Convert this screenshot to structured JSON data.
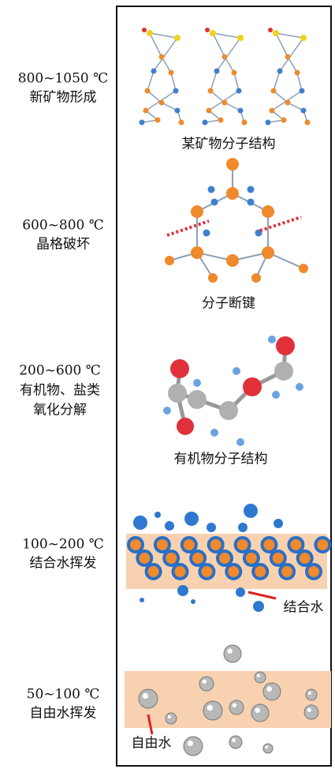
{
  "stages": [
    {
      "temperature": "800~1050 ℃",
      "description": [
        "新矿物形成"
      ],
      "caption": "某矿物分子结构"
    },
    {
      "temperature": "600~800 ℃",
      "description": [
        "晶格破坏"
      ],
      "caption": "分子断键"
    },
    {
      "temperature": "200~600 ℃",
      "description": [
        "有机物、盐类",
        "氧化分解"
      ],
      "caption": "有机物分子结构"
    },
    {
      "temperature": "100~200 ℃",
      "description": [
        "结合水挥发"
      ],
      "caption": "结合水"
    },
    {
      "temperature": "50~100 ℃",
      "description": [
        "自由水挥发"
      ],
      "caption": "自由水"
    }
  ]
}
